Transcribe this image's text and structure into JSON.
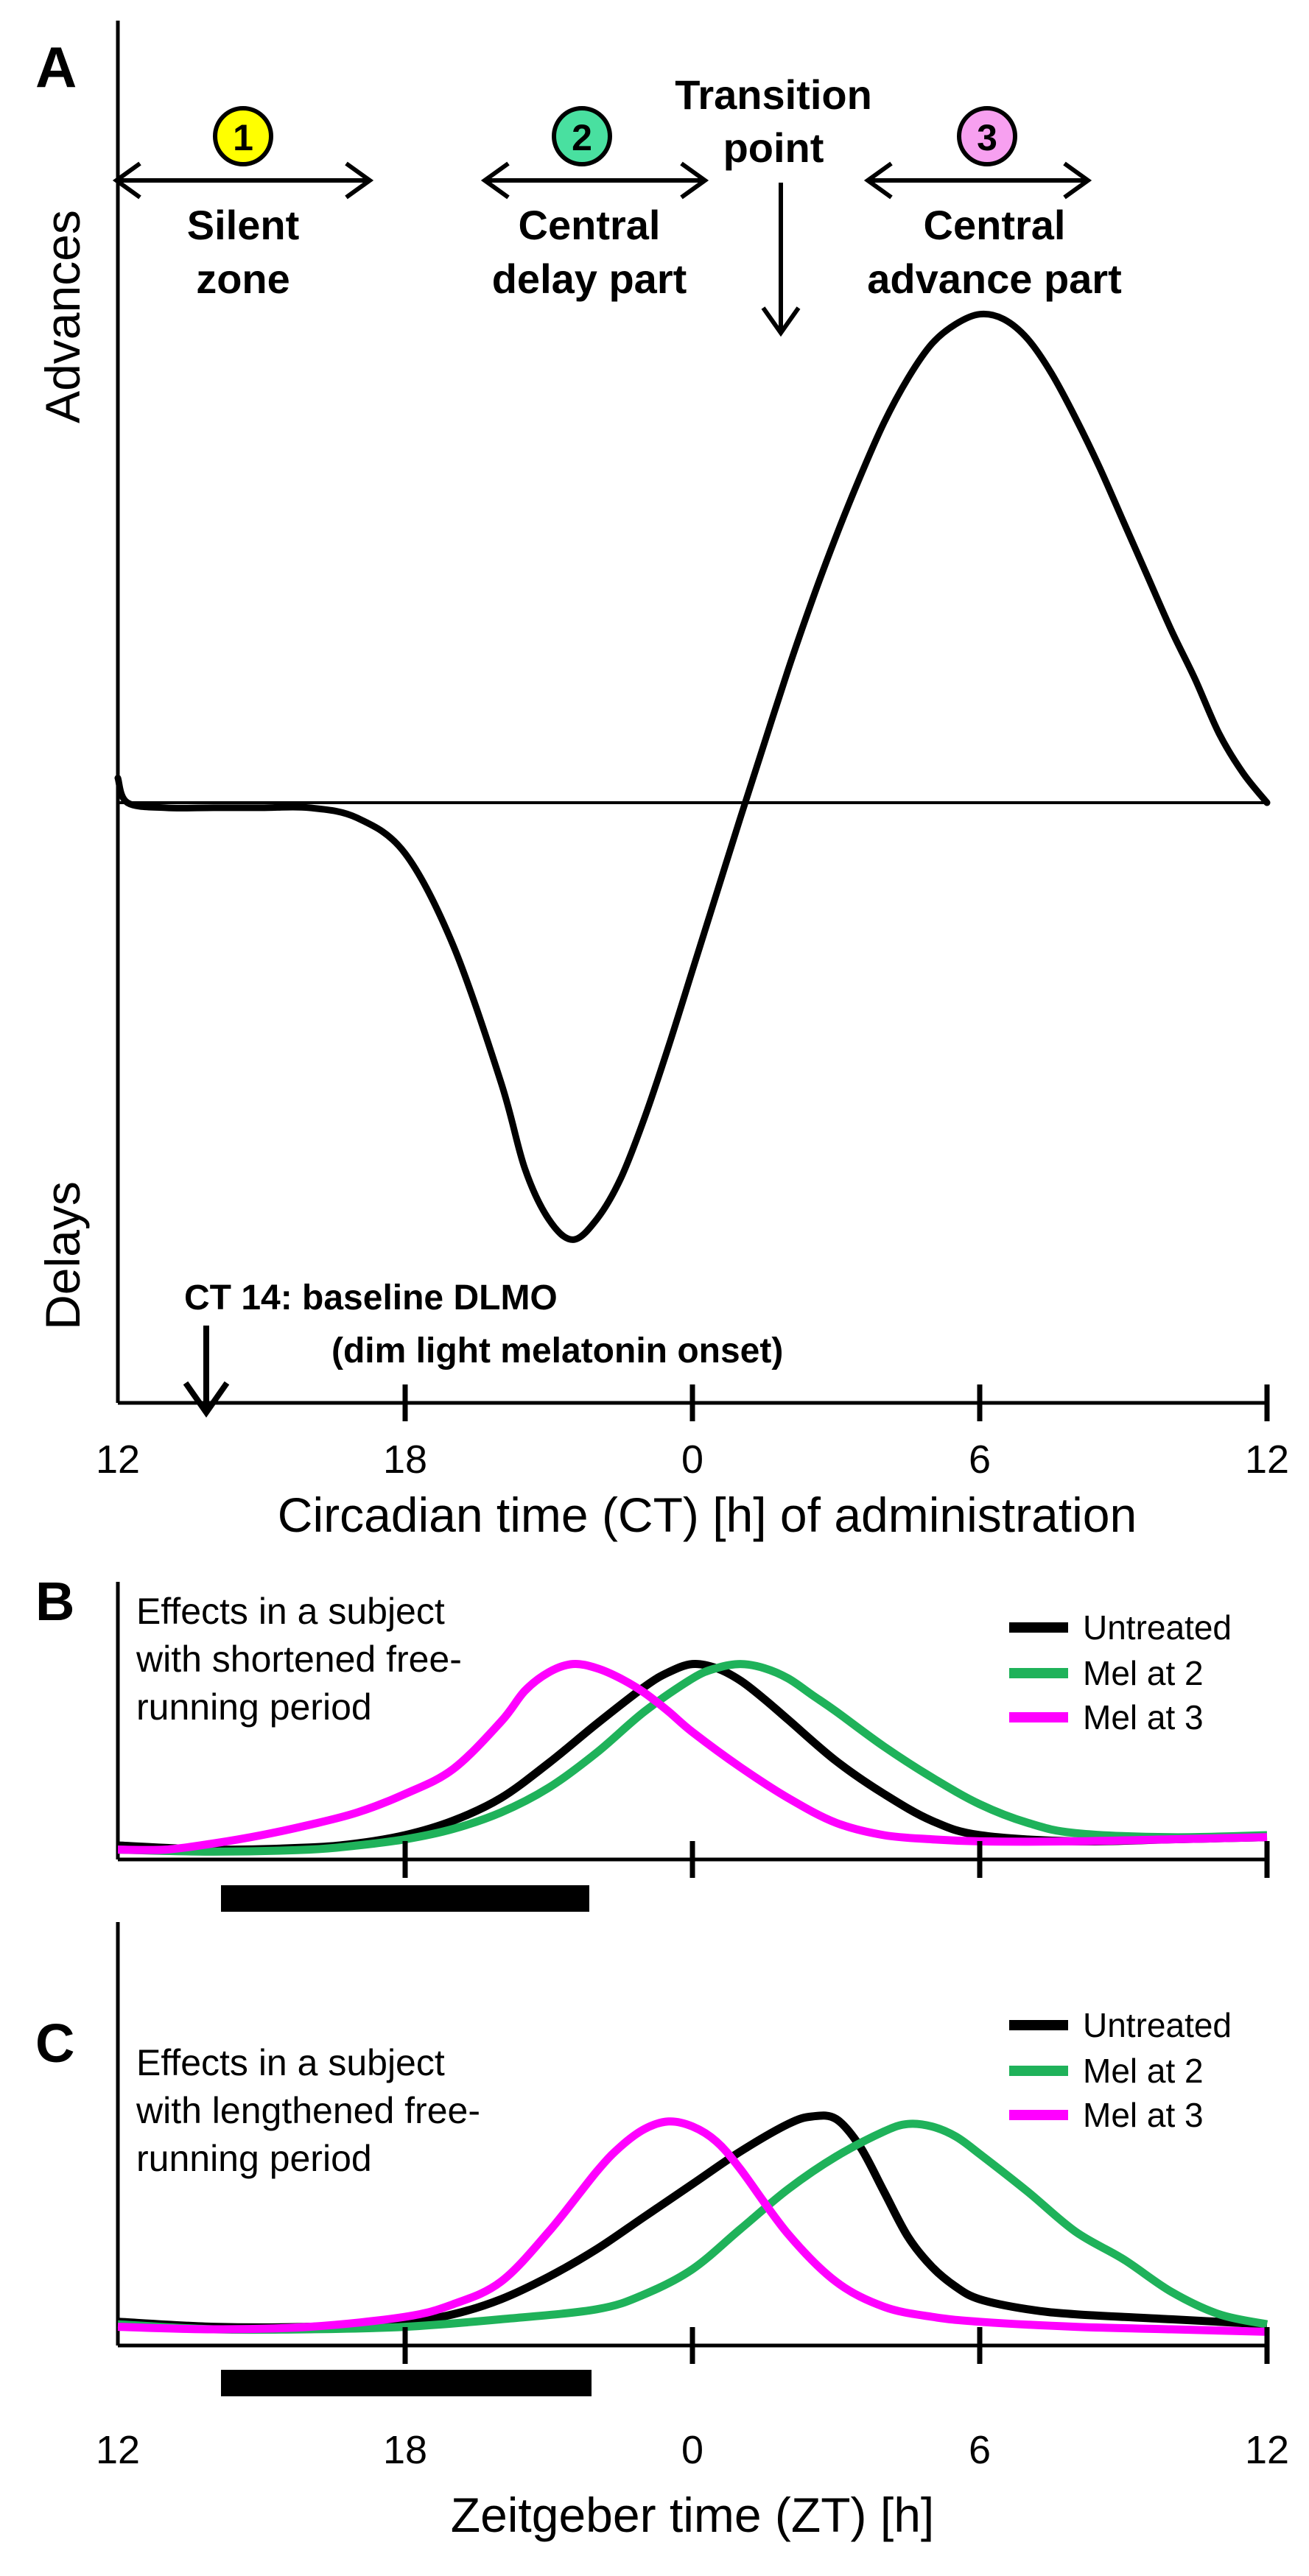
{
  "panels": {
    "a": {
      "letter": "A",
      "y_advances": "Advances",
      "y_delays": "Delays",
      "zones": [
        {
          "num": "1",
          "label1": "Silent",
          "label2": "zone"
        },
        {
          "num": "2",
          "label1": "Central",
          "label2": "delay part"
        },
        {
          "num": "3",
          "label1": "Central",
          "label2": "advance part"
        }
      ],
      "transition1": "Transition",
      "transition2": "point",
      "dlmo1": "CT 14: baseline DLMO",
      "dlmo2": "(dim light melatonin onset)"
    },
    "b": {
      "letter": "B",
      "text": [
        "Effects in a subject",
        "with shortened free-",
        "running period"
      ]
    },
    "c": {
      "letter": "C",
      "text": [
        "Effects in a subject",
        "with lengthened free-",
        "running period"
      ]
    }
  },
  "colors": {
    "untreated": "#000000",
    "mel2": "#1fb25a",
    "mel3": "#ff00ff",
    "zone1": "#ffff00",
    "zone2": "#49e0a0",
    "zone3": "#f7a0f0"
  },
  "chart_data": [
    {
      "type": "line",
      "panel": "A",
      "title": "",
      "xlabel": "Circadian time (CT) [h] of administration",
      "ylabel_top": "Advances",
      "ylabel_bottom": "Delays",
      "x_ticks": [
        "12",
        "18",
        "0",
        "6",
        "12"
      ],
      "x_tick_positions_h": [
        12,
        18,
        24,
        30,
        36
      ],
      "xlim_h": [
        12,
        36
      ],
      "ylim": [
        -1,
        1
      ],
      "series": [
        {
          "name": "Phase response curve",
          "color": "#000000",
          "x": [
            12,
            12.2,
            13,
            14,
            15,
            16,
            17,
            18,
            19,
            20,
            20.5,
            21,
            21.5,
            22,
            22.5,
            23,
            23.5,
            24,
            24.5,
            25,
            25.5,
            26,
            26.5,
            27,
            27.5,
            28,
            28.5,
            29,
            29.5,
            30,
            30.5,
            31,
            31.5,
            32,
            32.5,
            33,
            33.5,
            34,
            34.5,
            35,
            35.5,
            36
          ],
          "y": [
            0.05,
            0,
            -0.01,
            -0.01,
            -0.01,
            -0.01,
            -0.03,
            -0.1,
            -0.28,
            -0.55,
            -0.72,
            -0.82,
            -0.86,
            -0.82,
            -0.74,
            -0.62,
            -0.48,
            -0.33,
            -0.18,
            -0.03,
            0.12,
            0.27,
            0.41,
            0.54,
            0.66,
            0.77,
            0.86,
            0.93,
            0.97,
            0.99,
            0.98,
            0.94,
            0.87,
            0.78,
            0.68,
            0.57,
            0.46,
            0.35,
            0.25,
            0.14,
            0.06,
            0
          ]
        }
      ],
      "annotations": [
        "Silent zone",
        "Central delay part",
        "Transition point",
        "Central advance part",
        "CT 14: baseline DLMO (dim light melatonin onset)"
      ]
    },
    {
      "type": "line",
      "panel": "B",
      "title": "Effects in a subject with shortened free-running period",
      "x_ticks": [
        "12",
        "18",
        "0",
        "6",
        "12"
      ],
      "x_tick_positions_h": [
        12,
        18,
        24,
        30,
        36
      ],
      "xlim_h": [
        12,
        36
      ],
      "ylim": [
        0,
        1
      ],
      "series": [
        {
          "name": "Untreated",
          "color": "#000000",
          "x": [
            12,
            14,
            16,
            17,
            18,
            19,
            20,
            21,
            22,
            23,
            23.5,
            24,
            24.5,
            25,
            25.5,
            26,
            27,
            28,
            29,
            30,
            32,
            34,
            36
          ],
          "y": [
            0.05,
            0.03,
            0.04,
            0.06,
            0.1,
            0.17,
            0.28,
            0.45,
            0.64,
            0.82,
            0.89,
            0.93,
            0.91,
            0.85,
            0.76,
            0.66,
            0.46,
            0.3,
            0.17,
            0.1,
            0.07,
            0.08,
            0.09
          ]
        },
        {
          "name": "Mel at 2",
          "color": "#1fb25a",
          "x": [
            12,
            14,
            16,
            17,
            18,
            19,
            20,
            21,
            22,
            23,
            24,
            24.5,
            25,
            25.5,
            26,
            26.5,
            27,
            28,
            29,
            30,
            31,
            32,
            34,
            36
          ],
          "y": [
            0.03,
            0.02,
            0.03,
            0.05,
            0.08,
            0.13,
            0.21,
            0.33,
            0.5,
            0.7,
            0.86,
            0.91,
            0.93,
            0.91,
            0.86,
            0.78,
            0.7,
            0.53,
            0.38,
            0.25,
            0.16,
            0.11,
            0.09,
            0.1
          ]
        },
        {
          "name": "Mel at 3",
          "color": "#ff00ff",
          "x": [
            12,
            13,
            14,
            15,
            16,
            17,
            18,
            19,
            20,
            20.5,
            21,
            21.5,
            22,
            22.5,
            23,
            23.5,
            24,
            25,
            26,
            27,
            28,
            29,
            30,
            32,
            34,
            36
          ],
          "y": [
            0.03,
            0.03,
            0.06,
            0.1,
            0.15,
            0.21,
            0.3,
            0.42,
            0.65,
            0.8,
            0.89,
            0.93,
            0.91,
            0.86,
            0.79,
            0.7,
            0.6,
            0.43,
            0.28,
            0.16,
            0.1,
            0.08,
            0.07,
            0.07,
            0.08,
            0.09
          ]
        }
      ]
    },
    {
      "type": "line",
      "panel": "C",
      "title": "Effects in a subject with lengthened free-running period",
      "xlabel": "Zeitgeber time (ZT) [h]",
      "x_ticks": [
        "12",
        "18",
        "0",
        "6",
        "12"
      ],
      "x_tick_positions_h": [
        12,
        18,
        24,
        30,
        36
      ],
      "xlim_h": [
        12,
        36
      ],
      "ylim": [
        0,
        1
      ],
      "series": [
        {
          "name": "Untreated",
          "color": "#000000",
          "x": [
            12,
            14,
            16,
            18,
            19,
            20,
            21,
            22,
            23,
            24,
            25,
            26,
            26.5,
            27,
            27.5,
            28,
            28.5,
            29,
            29.5,
            30,
            31,
            32,
            34,
            36
          ],
          "y": [
            0.08,
            0.06,
            0.06,
            0.08,
            0.11,
            0.17,
            0.26,
            0.37,
            0.5,
            0.63,
            0.76,
            0.87,
            0.9,
            0.89,
            0.78,
            0.6,
            0.42,
            0.3,
            0.22,
            0.17,
            0.13,
            0.11,
            0.09,
            0.07
          ]
        },
        {
          "name": "Mel at 2",
          "color": "#1fb25a",
          "x": [
            12,
            14,
            16,
            18,
            20,
            22,
            23,
            24,
            25,
            26,
            27,
            28,
            28.5,
            29,
            29.5,
            30,
            31,
            32,
            33,
            34,
            35,
            36
          ],
          "y": [
            0.07,
            0.05,
            0.05,
            0.06,
            0.09,
            0.13,
            0.19,
            0.29,
            0.45,
            0.61,
            0.74,
            0.84,
            0.87,
            0.86,
            0.82,
            0.75,
            0.6,
            0.44,
            0.33,
            0.2,
            0.11,
            0.07
          ]
        },
        {
          "name": "Mel at 3",
          "color": "#ff00ff",
          "x": [
            12,
            14,
            16,
            18,
            19,
            20,
            21,
            22,
            22.5,
            23,
            23.5,
            24,
            24.5,
            25,
            26,
            27,
            28,
            29,
            30,
            32,
            34,
            36
          ],
          "y": [
            0.06,
            0.05,
            0.06,
            0.1,
            0.15,
            0.24,
            0.44,
            0.68,
            0.78,
            0.85,
            0.88,
            0.86,
            0.8,
            0.69,
            0.43,
            0.24,
            0.14,
            0.1,
            0.08,
            0.06,
            0.05,
            0.04
          ]
        }
      ]
    }
  ],
  "legend": {
    "untreated": "Untreated",
    "mel2": "Mel at 2",
    "mel3": "Mel at 3"
  },
  "axis_labels": {
    "a_x": "Circadian time (CT) [h] of administration",
    "c_x": "Zeitgeber time (ZT) [h]"
  },
  "tick_labels": [
    "12",
    "18",
    "0",
    "6",
    "12"
  ]
}
